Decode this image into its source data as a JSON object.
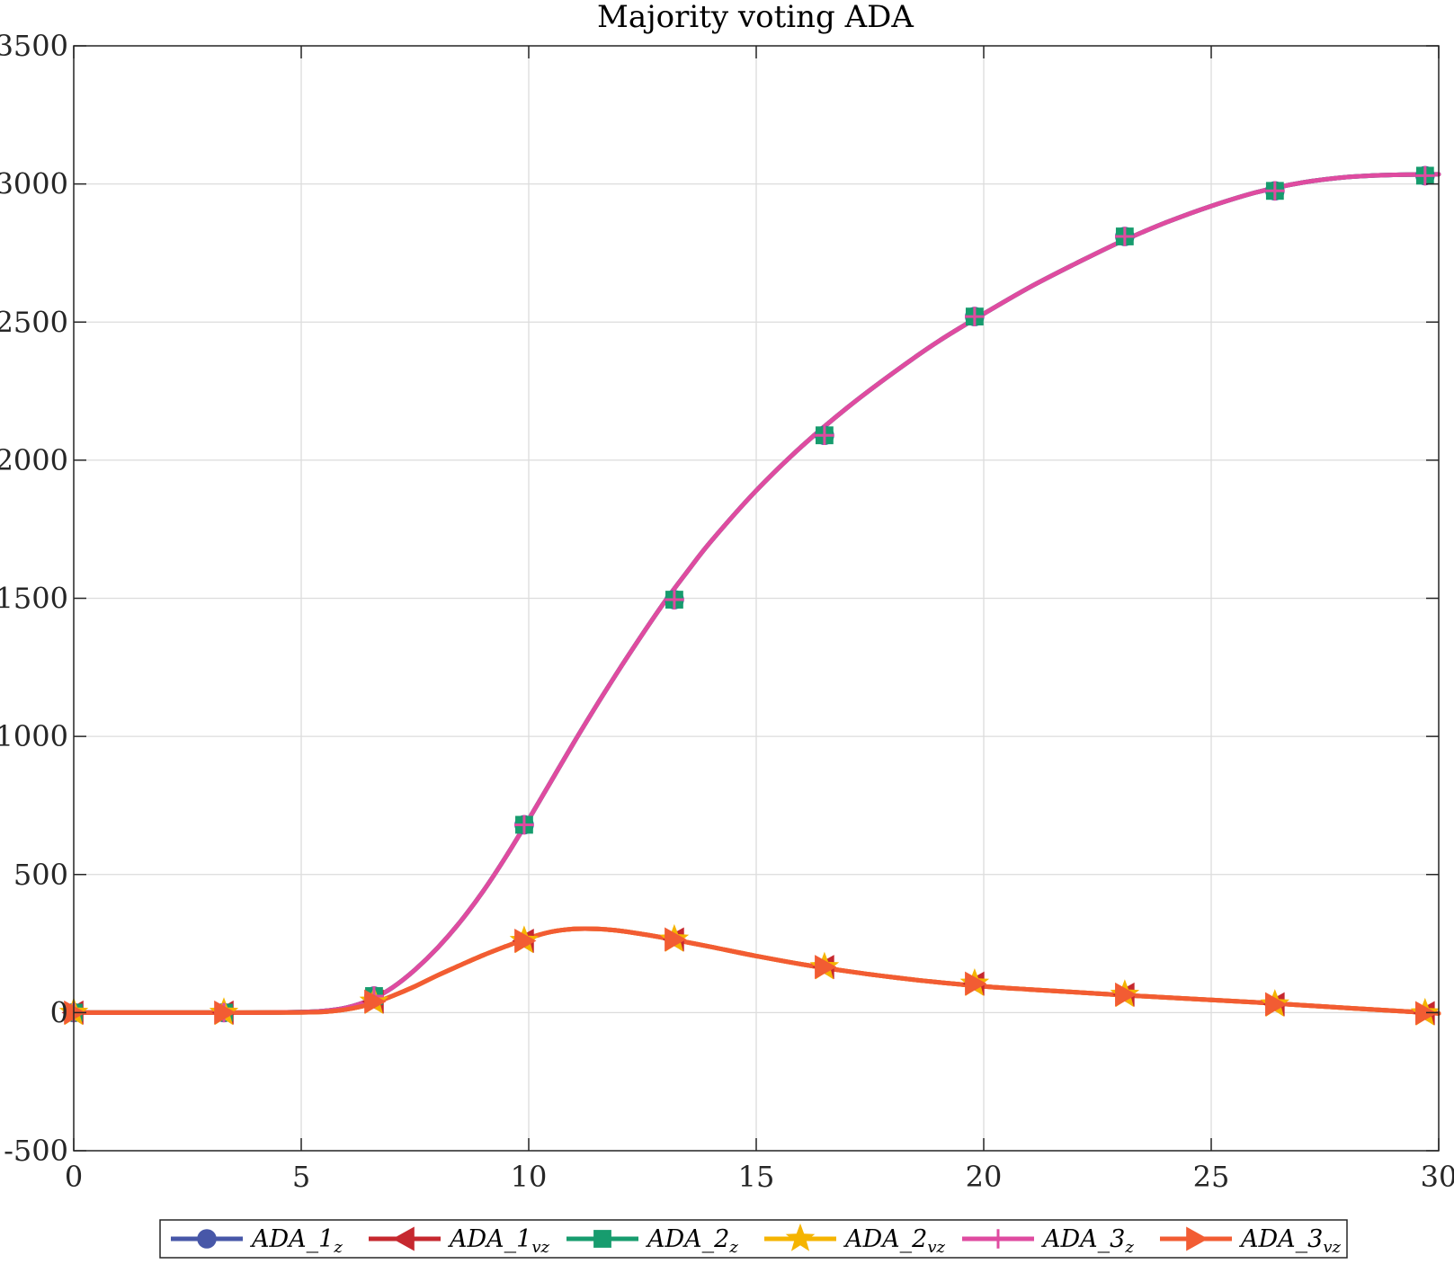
{
  "chart_data": {
    "type": "line",
    "title": "Majority voting ADA",
    "xlabel": "",
    "ylabel": "",
    "xlim": [
      0,
      30
    ],
    "ylim": [
      -500,
      3500
    ],
    "xticks": [
      0,
      5,
      10,
      15,
      20,
      25,
      30
    ],
    "yticks": [
      -500,
      0,
      500,
      1000,
      1500,
      2000,
      2500,
      3000,
      3500
    ],
    "xtick_labels": [
      "0",
      "5",
      "10",
      "15",
      "20",
      "25",
      "30"
    ],
    "ytick_labels": [
      "-500",
      "0",
      "500",
      "1000",
      "1500",
      "2000",
      "2500",
      "3000",
      "3500"
    ],
    "grid": true,
    "legend_position": "bottom-outside",
    "x": [
      0,
      3.3,
      6.6,
      9.9,
      13.2,
      16.5,
      19.8,
      23.1,
      26.4,
      29.7
    ],
    "series": [
      {
        "name": "ADA_1",
        "sub": "z",
        "color": "#4757a8",
        "marker": "circle",
        "values": [
          0,
          0,
          60,
          680,
          1495,
          2090,
          2520,
          2810,
          2975,
          3030
        ]
      },
      {
        "name": "ADA_1",
        "sub": "vz",
        "color": "#c6282f",
        "marker": "triangle-left",
        "values": [
          0,
          0,
          40,
          260,
          265,
          165,
          105,
          65,
          30,
          -2
        ]
      },
      {
        "name": "ADA_2",
        "sub": "z",
        "color": "#179c6e",
        "marker": "square",
        "values": [
          0,
          0,
          60,
          680,
          1495,
          2090,
          2520,
          2810,
          2975,
          3030
        ]
      },
      {
        "name": "ADA_2",
        "sub": "vz",
        "color": "#f5b400",
        "marker": "star",
        "values": [
          0,
          0,
          40,
          260,
          265,
          165,
          105,
          65,
          30,
          -2
        ]
      },
      {
        "name": "ADA_3",
        "sub": "z",
        "color": "#df4ba0",
        "marker": "plus",
        "values": [
          0,
          0,
          60,
          680,
          1495,
          2090,
          2520,
          2810,
          2975,
          3030
        ]
      },
      {
        "name": "ADA_3",
        "sub": "vz",
        "color": "#f25c33",
        "marker": "triangle-right",
        "values": [
          0,
          0,
          40,
          260,
          265,
          165,
          105,
          65,
          30,
          -2
        ]
      }
    ],
    "curve_z": {
      "x": [
        0,
        1,
        2,
        3,
        4,
        5,
        5.5,
        6,
        6.5,
        7,
        7.5,
        8,
        8.5,
        9,
        9.5,
        10,
        10.5,
        11,
        11.5,
        12,
        12.5,
        13,
        13.5,
        14,
        15,
        16,
        17,
        18,
        19,
        20,
        21,
        22,
        23,
        24,
        25,
        26,
        27,
        28,
        29,
        30
      ],
      "y": [
        0,
        0,
        0,
        0,
        0,
        2,
        6,
        18,
        45,
        90,
        155,
        235,
        330,
        440,
        565,
        700,
        840,
        980,
        1115,
        1245,
        1370,
        1490,
        1600,
        1705,
        1890,
        2050,
        2190,
        2315,
        2430,
        2530,
        2625,
        2710,
        2790,
        2860,
        2920,
        2970,
        3005,
        3025,
        3033,
        3035
      ]
    },
    "curve_vz": {
      "x": [
        0,
        1,
        2,
        3,
        4,
        5,
        5.5,
        6,
        6.5,
        7,
        7.5,
        8,
        8.5,
        9,
        9.5,
        10,
        10.5,
        11,
        11.5,
        12,
        12.5,
        13,
        14,
        15,
        16,
        17,
        18,
        19,
        20,
        21,
        22,
        23,
        24,
        25,
        26,
        27,
        28,
        29,
        30
      ],
      "y": [
        0,
        0,
        0,
        0,
        0,
        1,
        3,
        12,
        30,
        60,
        95,
        135,
        172,
        208,
        240,
        270,
        293,
        303,
        303,
        296,
        284,
        270,
        238,
        205,
        175,
        150,
        128,
        110,
        95,
        84,
        74,
        64,
        55,
        46,
        37,
        27,
        17,
        7,
        -3
      ]
    }
  }
}
